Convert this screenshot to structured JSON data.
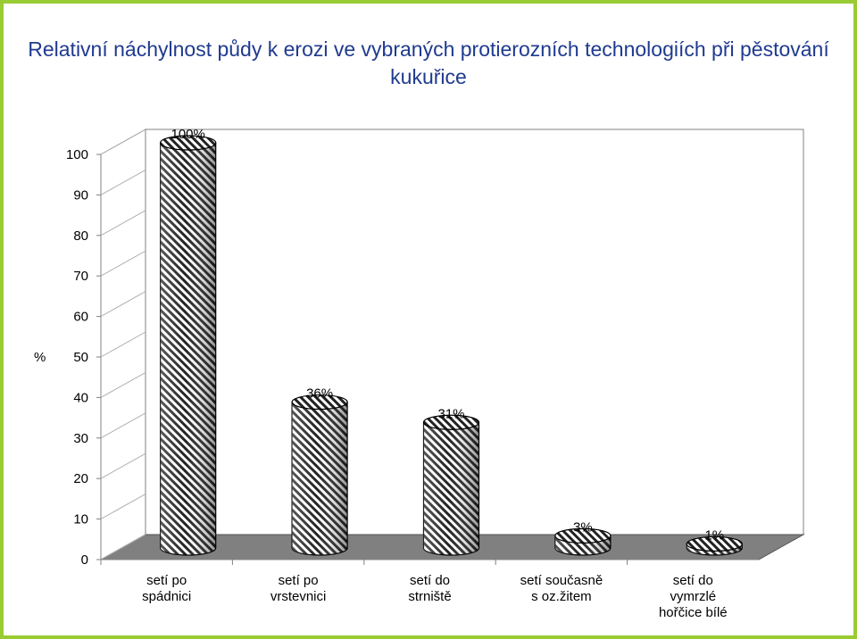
{
  "chart_data": {
    "type": "bar",
    "title": "Relativní náchylnost půdy k erozi ve vybraných protierozních technologiích při pěstování kukuřice",
    "ylabel": "%",
    "xlabel": "",
    "ylim": [
      0,
      100
    ],
    "yticks": [
      0,
      10,
      20,
      30,
      40,
      50,
      60,
      70,
      80,
      90,
      100
    ],
    "categories": [
      [
        "setí po",
        "spádnici"
      ],
      [
        "setí po",
        "vrstevnici"
      ],
      [
        "setí do",
        "strniště"
      ],
      [
        "setí současně",
        "s oz.žitem"
      ],
      [
        "setí do",
        "vymrzlé",
        "hořčice bílé"
      ]
    ],
    "values": [
      100,
      36,
      31,
      3,
      1
    ],
    "data_labels": [
      "100%",
      "36%",
      "31%",
      "3%",
      "1%"
    ],
    "style": "3d-cylinder",
    "fill_pattern": "diagonal-hatch",
    "grid": false,
    "colors": {
      "background": "#99cc33",
      "title": "#1f3a8f",
      "bar_stroke": "#000000",
      "bar_hatch": "#000000",
      "floor": "#808080"
    }
  }
}
